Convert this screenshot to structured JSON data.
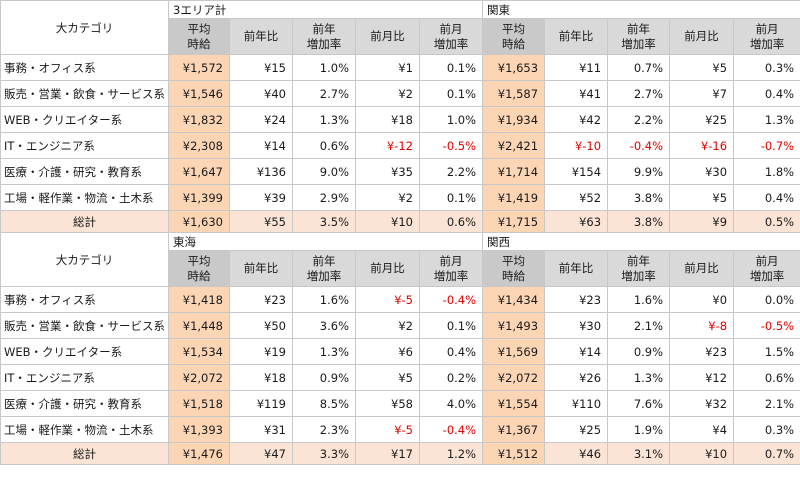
{
  "columns": {
    "category": "大カテゴリ",
    "avg": [
      "平均",
      "時給"
    ],
    "yoy": "前年比",
    "yoy_rate": [
      "前年",
      "増加率"
    ],
    "mom": "前月比",
    "mom_rate": [
      "前月",
      "増加率"
    ]
  },
  "blocks": [
    {
      "region_left": "3エリア計",
      "region_right": "関東",
      "rows": [
        {
          "cat": "事務・オフィス系",
          "l": [
            "¥1,572",
            "¥15",
            "1.0%",
            "¥1",
            "0.1%"
          ],
          "r": [
            "¥1,653",
            "¥11",
            "0.7%",
            "¥5",
            "0.3%"
          ]
        },
        {
          "cat": "販売・営業・飲食・サービス系",
          "l": [
            "¥1,546",
            "¥40",
            "2.7%",
            "¥2",
            "0.1%"
          ],
          "r": [
            "¥1,587",
            "¥41",
            "2.7%",
            "¥7",
            "0.4%"
          ]
        },
        {
          "cat": "WEB・クリエイター系",
          "l": [
            "¥1,832",
            "¥24",
            "1.3%",
            "¥18",
            "1.0%"
          ],
          "r": [
            "¥1,934",
            "¥42",
            "2.2%",
            "¥25",
            "1.3%"
          ]
        },
        {
          "cat": "IT・エンジニア系",
          "l": [
            "¥2,308",
            "¥14",
            "0.6%",
            "¥-12",
            "-0.5%"
          ],
          "r": [
            "¥2,421",
            "¥-10",
            "-0.4%",
            "¥-16",
            "-0.7%"
          ]
        },
        {
          "cat": "医療・介護・研究・教育系",
          "l": [
            "¥1,647",
            "¥136",
            "9.0%",
            "¥35",
            "2.2%"
          ],
          "r": [
            "¥1,714",
            "¥154",
            "9.9%",
            "¥30",
            "1.8%"
          ]
        },
        {
          "cat": "工場・軽作業・物流・土木系",
          "l": [
            "¥1,399",
            "¥39",
            "2.9%",
            "¥2",
            "0.1%"
          ],
          "r": [
            "¥1,419",
            "¥52",
            "3.8%",
            "¥5",
            "0.4%"
          ]
        }
      ],
      "total": {
        "cat": "総計",
        "l": [
          "¥1,630",
          "¥55",
          "3.5%",
          "¥10",
          "0.6%"
        ],
        "r": [
          "¥1,715",
          "¥63",
          "3.8%",
          "¥9",
          "0.5%"
        ]
      }
    },
    {
      "region_left": "東海",
      "region_right": "関西",
      "rows": [
        {
          "cat": "事務・オフィス系",
          "l": [
            "¥1,418",
            "¥23",
            "1.6%",
            "¥-5",
            "-0.4%"
          ],
          "r": [
            "¥1,434",
            "¥23",
            "1.6%",
            "¥0",
            "0.0%"
          ]
        },
        {
          "cat": "販売・営業・飲食・サービス系",
          "l": [
            "¥1,448",
            "¥50",
            "3.6%",
            "¥2",
            "0.1%"
          ],
          "r": [
            "¥1,493",
            "¥30",
            "2.1%",
            "¥-8",
            "-0.5%"
          ]
        },
        {
          "cat": "WEB・クリエイター系",
          "l": [
            "¥1,534",
            "¥19",
            "1.3%",
            "¥6",
            "0.4%"
          ],
          "r": [
            "¥1,569",
            "¥14",
            "0.9%",
            "¥23",
            "1.5%"
          ]
        },
        {
          "cat": "IT・エンジニア系",
          "l": [
            "¥2,072",
            "¥18",
            "0.9%",
            "¥5",
            "0.2%"
          ],
          "r": [
            "¥2,072",
            "¥26",
            "1.3%",
            "¥12",
            "0.6%"
          ]
        },
        {
          "cat": "医療・介護・研究・教育系",
          "l": [
            "¥1,518",
            "¥119",
            "8.5%",
            "¥58",
            "4.0%"
          ],
          "r": [
            "¥1,554",
            "¥110",
            "7.6%",
            "¥32",
            "2.1%"
          ]
        },
        {
          "cat": "工場・軽作業・物流・土木系",
          "l": [
            "¥1,393",
            "¥31",
            "2.3%",
            "¥-5",
            "-0.4%"
          ],
          "r": [
            "¥1,367",
            "¥25",
            "1.9%",
            "¥4",
            "0.3%"
          ]
        }
      ],
      "total": {
        "cat": "総計",
        "l": [
          "¥1,476",
          "¥47",
          "3.3%",
          "¥17",
          "1.2%"
        ],
        "r": [
          "¥1,512",
          "¥46",
          "3.1%",
          "¥10",
          "0.7%"
        ]
      }
    }
  ],
  "colors": {
    "avg_fill": "#fcd5b4",
    "total_fill": "#fbe4d5",
    "header_fill": "#d9d9d9",
    "negative": "#e00000"
  }
}
